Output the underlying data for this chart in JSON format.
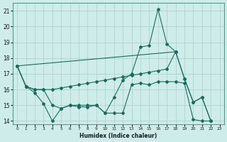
{
  "xlabel": "Humidex (Indice chaleur)",
  "background_color": "#ceecea",
  "grid_color": "#aacfcc",
  "line_color": "#1a6b5e",
  "ylim": [
    13.8,
    21.5
  ],
  "xlim": [
    -0.5,
    23.5
  ],
  "yticks": [
    14,
    15,
    16,
    17,
    18,
    19,
    20,
    21
  ],
  "xticks": [
    0,
    1,
    2,
    3,
    4,
    5,
    6,
    7,
    8,
    9,
    10,
    11,
    12,
    13,
    14,
    15,
    16,
    17,
    18,
    19,
    20,
    21,
    22,
    23
  ],
  "series": [
    {
      "x": [
        0,
        1,
        2,
        3,
        4,
        5,
        6,
        7,
        8,
        9,
        10,
        11,
        12,
        13,
        14,
        15,
        16,
        17,
        18
      ],
      "y": [
        17.5,
        16.2,
        15.8,
        15.1,
        14.0,
        14.8,
        15.0,
        14.9,
        14.9,
        15.0,
        14.5,
        15.5,
        16.6,
        17.0,
        18.7,
        18.8,
        21.1,
        18.9,
        18.4
      ]
    },
    {
      "x": [
        0,
        1,
        2,
        3,
        4,
        5,
        6,
        7,
        8,
        9,
        10,
        11,
        12,
        13,
        14,
        15,
        16,
        17,
        18,
        19,
        20,
        21,
        22
      ],
      "y": [
        17.5,
        16.2,
        16.0,
        16.0,
        15.0,
        14.8,
        15.0,
        15.0,
        15.0,
        15.0,
        14.5,
        14.5,
        14.5,
        16.3,
        16.4,
        16.3,
        16.5,
        16.5,
        16.5,
        16.4,
        14.1,
        14.0,
        14.0
      ]
    },
    {
      "x": [
        0,
        18,
        19,
        20,
        21,
        22
      ],
      "y": [
        17.5,
        18.4,
        16.7,
        15.2,
        15.5,
        14.0
      ]
    },
    {
      "x": [
        0,
        1,
        2,
        3,
        4,
        5,
        6,
        7,
        8,
        9,
        10,
        11,
        12,
        13,
        14,
        15,
        16,
        17,
        18,
        19,
        20,
        21,
        22
      ],
      "y": [
        17.5,
        16.2,
        16.0,
        16.0,
        16.0,
        16.1,
        16.2,
        16.3,
        16.4,
        16.5,
        16.6,
        16.7,
        16.8,
        16.9,
        17.0,
        17.1,
        17.2,
        17.3,
        18.4,
        16.7,
        15.2,
        15.5,
        14.0
      ]
    }
  ]
}
